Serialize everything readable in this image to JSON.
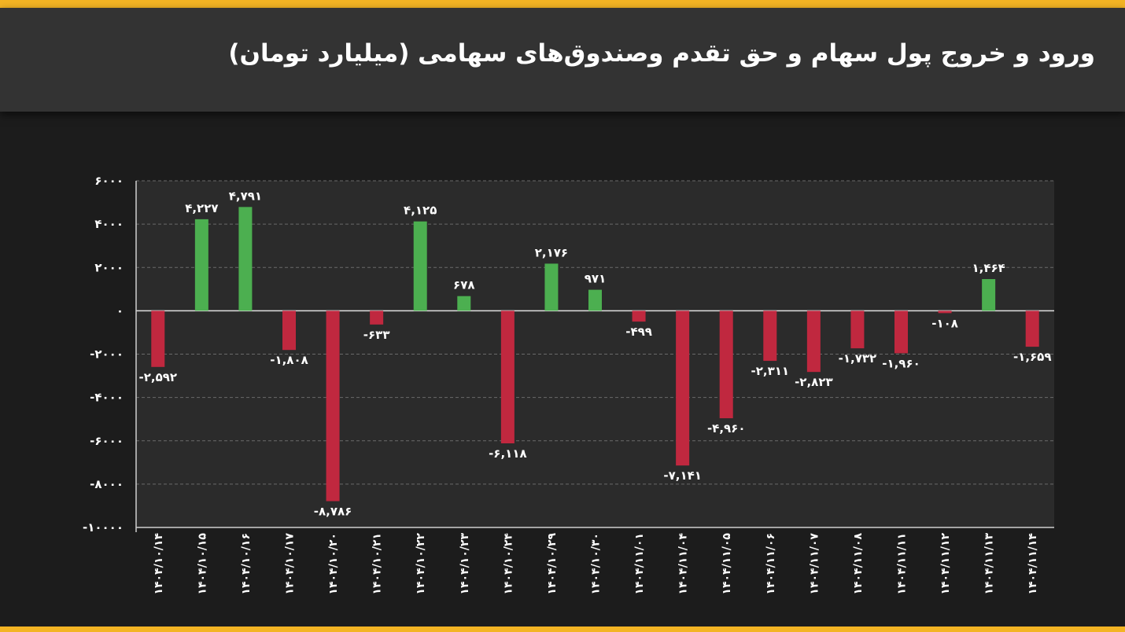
{
  "title": "ورود و خروج پول سهام و حق تقدم وصندوق‌های سهامی (میلیارد تومان)",
  "chart_data": {
    "type": "bar",
    "title": "ورود و خروج پول سهام و حق تقدم وصندوق‌های سهامی (میلیارد تومان)",
    "xlabel": "",
    "ylabel": "",
    "ylim": [
      -10000,
      6000
    ],
    "yticks": [
      6000,
      4000,
      2000,
      0,
      -2000,
      -4000,
      -6000,
      -8000,
      -10000
    ],
    "ytick_labels": [
      "۶۰۰۰",
      "۴۰۰۰",
      "۲۰۰۰",
      "۰",
      "-۲۰۰۰",
      "-۴۰۰۰",
      "-۶۰۰۰",
      "-۸۰۰۰",
      "-۱۰۰۰۰"
    ],
    "grid": true,
    "positive_color": "#4caf50",
    "negative_color": "#c0283f",
    "categories": [
      "۱۴۰۴/۱۰/۱۴",
      "۱۴۰۴/۱۰/۱۵",
      "۱۴۰۴/۱۰/۱۶",
      "۱۴۰۴/۱۰/۱۷",
      "۱۴۰۴/۱۰/۲۰",
      "۱۴۰۴/۱۰/۲۱",
      "۱۴۰۴/۱۰/۲۲",
      "۱۴۰۴/۱۰/۲۳",
      "۱۴۰۴/۱۰/۲۴",
      "۱۴۰۴/۱۰/۲۹",
      "۱۴۰۴/۱۰/۳۰",
      "۱۴۰۴/۱۱/۰۱",
      "۱۴۰۴/۱۱/۰۴",
      "۱۴۰۴/۱۱/۰۵",
      "۱۴۰۴/۱۱/۰۶",
      "۱۴۰۴/۱۱/۰۷",
      "۱۴۰۴/۱۱/۰۸",
      "۱۴۰۴/۱۱/۱۱",
      "۱۴۰۴/۱۱/۱۲",
      "۱۴۰۴/۱۱/۱۳",
      "۱۴۰۴/۱۱/۱۴"
    ],
    "values": [
      -2592,
      4227,
      4791,
      -1808,
      -8786,
      -633,
      4125,
      678,
      -6118,
      2176,
      971,
      -499,
      -7141,
      -4960,
      -2311,
      -2823,
      -1732,
      -1960,
      -108,
      1464,
      -1659
    ],
    "value_labels": [
      "-۲,۵۹۲",
      "۴,۲۲۷",
      "۴,۷۹۱",
      "-۱,۸۰۸",
      "-۸,۷۸۶",
      "-۶۳۳",
      "۴,۱۲۵",
      "۶۷۸",
      "-۶,۱۱۸",
      "۲,۱۷۶",
      "۹۷۱",
      "-۴۹۹",
      "-۷,۱۴۱",
      "-۴,۹۶۰",
      "-۲,۳۱۱",
      "-۲,۸۲۳",
      "-۱,۷۳۲",
      "-۱,۹۶۰",
      "-۱۰۸",
      "۱,۴۶۴",
      "-۱,۶۵۹"
    ]
  }
}
